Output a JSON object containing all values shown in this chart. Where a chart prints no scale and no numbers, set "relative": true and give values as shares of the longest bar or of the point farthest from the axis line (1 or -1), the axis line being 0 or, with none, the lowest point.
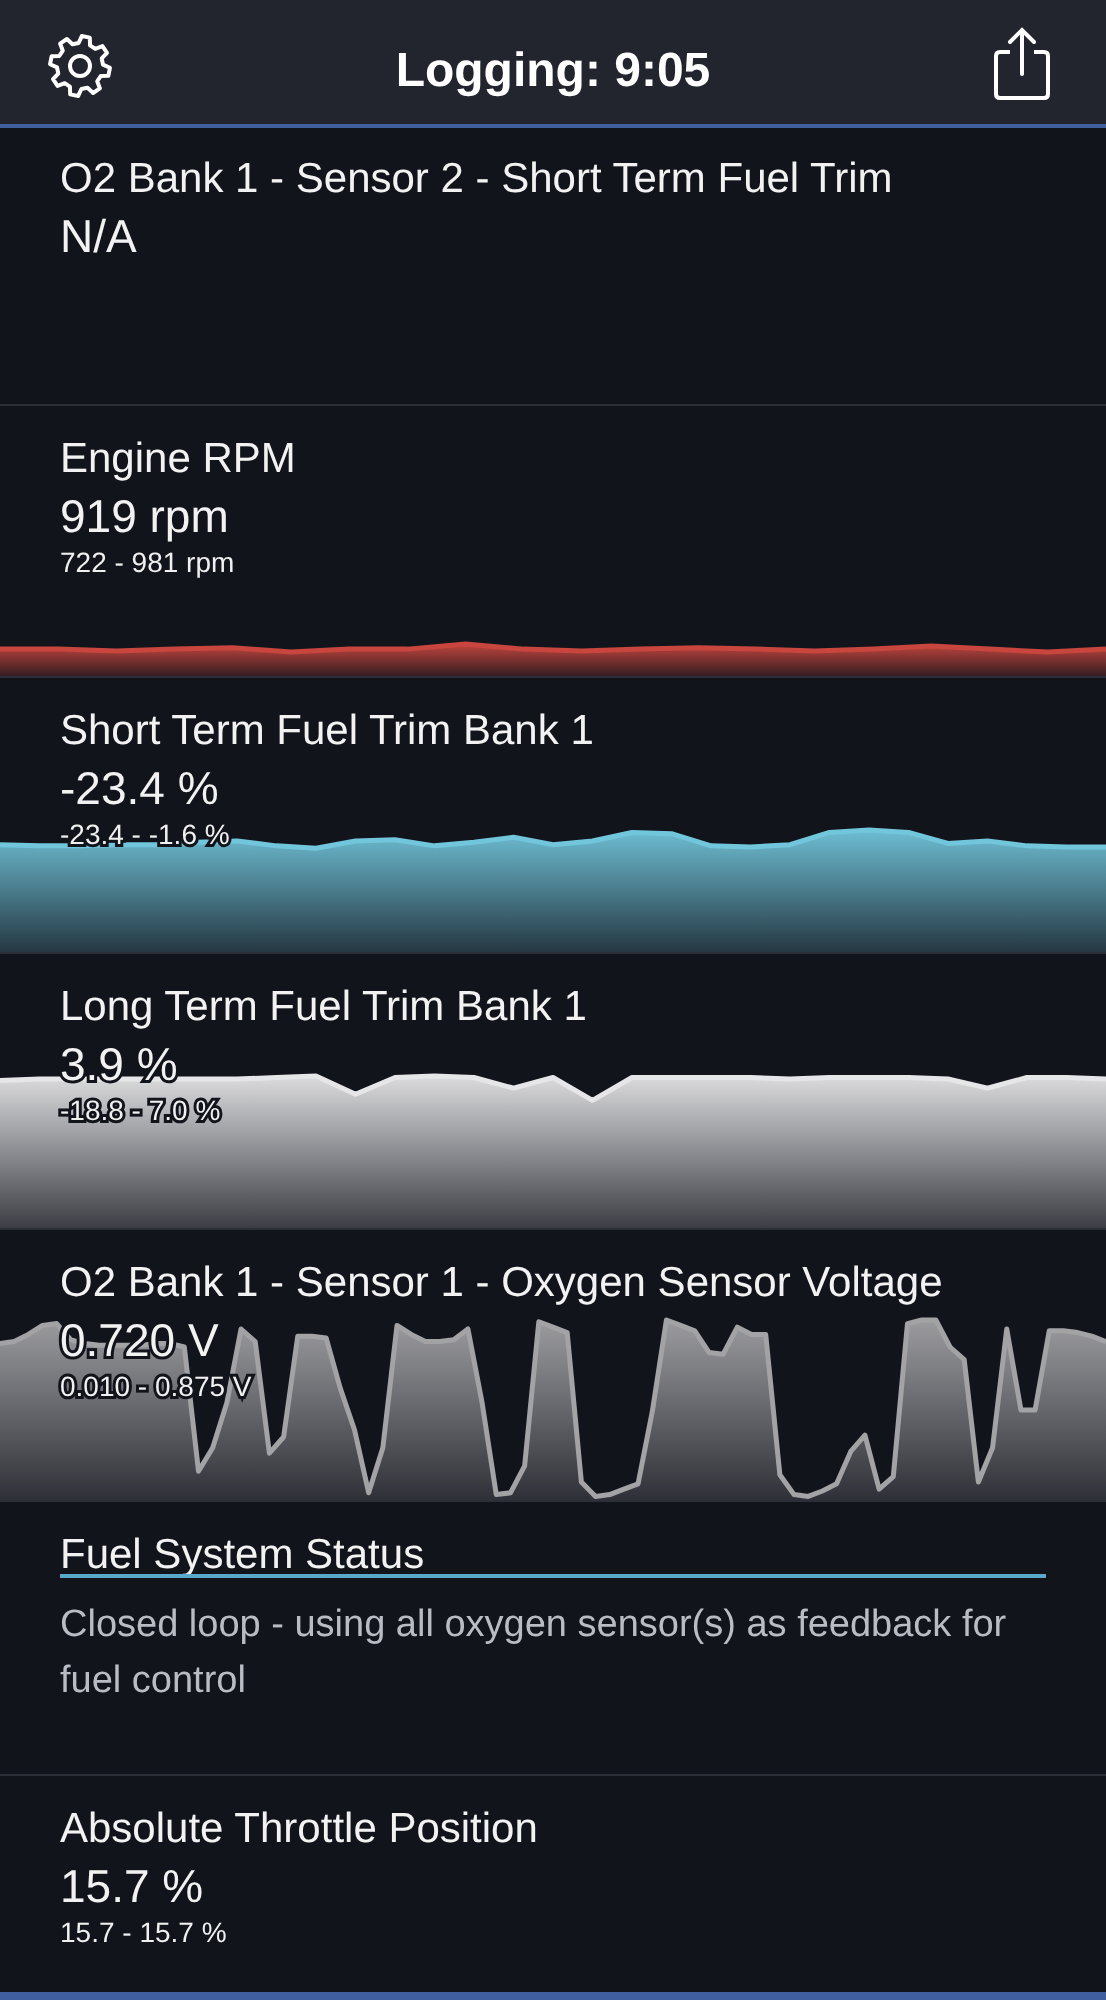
{
  "chart_data": [
    {
      "type": "other",
      "title": "Logging: 9:05"
    },
    {
      "type": "other",
      "title": "O2 Bank 1 - Sensor 2 - Short Term Fuel Trim",
      "subtitle": "N/A"
    },
    {
      "type": "line",
      "title": "Engine RPM",
      "subtitle": "919 rpm",
      "annotations": [
        "722 - 981 rpm"
      ],
      "relative": true,
      "color": "#c8463e",
      "categories": [
        null,
        null,
        null,
        null,
        null,
        null,
        null,
        null,
        null,
        null,
        null,
        null,
        null,
        null,
        null,
        null,
        null,
        null,
        null,
        null
      ],
      "values": [
        0.84,
        0.84,
        0.78,
        0.84,
        0.88,
        0.75,
        0.84,
        0.84,
        1,
        0.84,
        0.78,
        0.84,
        0.88,
        0.84,
        0.78,
        0.84,
        0.94,
        0.84,
        0.75,
        0.84
      ]
    },
    {
      "type": "line",
      "title": "Short Term Fuel Trim Bank 1",
      "subtitle": "-23.4 %",
      "annotations": [
        "-23.4 - -1.6 %"
      ],
      "relative": true,
      "color": "#72c6dc",
      "categories": [
        null,
        null,
        null,
        null,
        null,
        null,
        null,
        null,
        null,
        null,
        null,
        null,
        null,
        null,
        null,
        null,
        null,
        null,
        null,
        null,
        null,
        null,
        null,
        null,
        null,
        null,
        null,
        null,
        null
      ],
      "values": [
        0.88,
        0.87,
        0.87,
        0.88,
        0.88,
        0.9,
        0.91,
        0.87,
        0.85,
        0.91,
        0.92,
        0.87,
        0.9,
        0.94,
        0.88,
        0.91,
        0.98,
        0.97,
        0.87,
        0.86,
        0.88,
        0.98,
        1,
        0.98,
        0.89,
        0.91,
        0.87,
        0.86,
        0.86
      ]
    },
    {
      "type": "line",
      "title": "Long Term Fuel Trim Bank 1",
      "subtitle": "3.9 %",
      "annotations": [
        "-18.8 - 7.0 %"
      ],
      "relative": true,
      "color": "#e6e6e8",
      "categories": [
        null,
        null,
        null,
        null,
        null,
        null,
        null,
        null,
        null,
        null,
        null,
        null,
        null,
        null,
        null,
        null,
        null,
        null,
        null,
        null,
        null,
        null,
        null,
        null,
        null,
        null,
        null,
        null,
        null
      ],
      "values": [
        0.97,
        0.98,
        0.98,
        0.98,
        0.98,
        0.98,
        0.98,
        0.99,
        1,
        0.88,
        0.99,
        1,
        0.99,
        0.92,
        0.99,
        0.84,
        0.99,
        0.99,
        0.99,
        0.99,
        0.98,
        0.99,
        0.99,
        0.99,
        0.98,
        0.92,
        0.99,
        0.99,
        0.98
      ]
    },
    {
      "type": "area",
      "title": "O2 Bank 1 - Sensor 1 - Oxygen Sensor Voltage",
      "subtitle": "0.720 V",
      "annotations": [
        "0.010 - 0.875 V"
      ],
      "relative": true,
      "color": "#a3a3a6",
      "categories": [
        null,
        null,
        null,
        null,
        null,
        null,
        null,
        null,
        null,
        null,
        null,
        null,
        null,
        null,
        null,
        null,
        null,
        null,
        null,
        null,
        null,
        null,
        null,
        null,
        null,
        null,
        null,
        null,
        null,
        null,
        null,
        null,
        null,
        null,
        null,
        null,
        null,
        null,
        null,
        null,
        null,
        null,
        null,
        null,
        null,
        null,
        null,
        null,
        null,
        null,
        null,
        null,
        null,
        null,
        null,
        null,
        null,
        null,
        null,
        null,
        null,
        null,
        null,
        null,
        null,
        null,
        null,
        null,
        null,
        null,
        null,
        null,
        null,
        null,
        null,
        null,
        null,
        null,
        null
      ],
      "values": [
        0.87,
        0.88,
        0.92,
        0.97,
        0.98,
        0.89,
        0.87,
        0.86,
        0.86,
        0.86,
        0.86,
        0.87,
        0.87,
        0.85,
        0.16,
        0.29,
        0.54,
        0.95,
        0.88,
        0.26,
        0.35,
        0.91,
        0.91,
        0.9,
        0.62,
        0.39,
        0.04,
        0.29,
        0.97,
        0.92,
        0.88,
        0.88,
        0.89,
        0.95,
        0.54,
        0.03,
        0.04,
        0.19,
        0.99,
        0.96,
        0.93,
        0.1,
        0.02,
        0.03,
        0.06,
        0.09,
        0.49,
        1,
        0.97,
        0.94,
        0.82,
        0.81,
        0.96,
        0.92,
        0.92,
        0.14,
        0.03,
        0.02,
        0.05,
        0.09,
        0.27,
        0.36,
        0.06,
        0.13,
        0.98,
        1,
        1,
        0.85,
        0.78,
        0.1,
        0.29,
        0.95,
        0.5,
        0.5,
        0.94,
        0.94,
        0.93,
        0.91,
        0.88
      ]
    },
    {
      "type": "other",
      "title": "Fuel System Status",
      "subtitle": "Closed loop - using all oxygen sensor(s) as feedback for fuel control"
    },
    {
      "type": "other",
      "title": "Absolute Throttle Position",
      "subtitle": "15.7 %",
      "annotations": [
        "15.7 - 15.7 %"
      ]
    }
  ]
}
